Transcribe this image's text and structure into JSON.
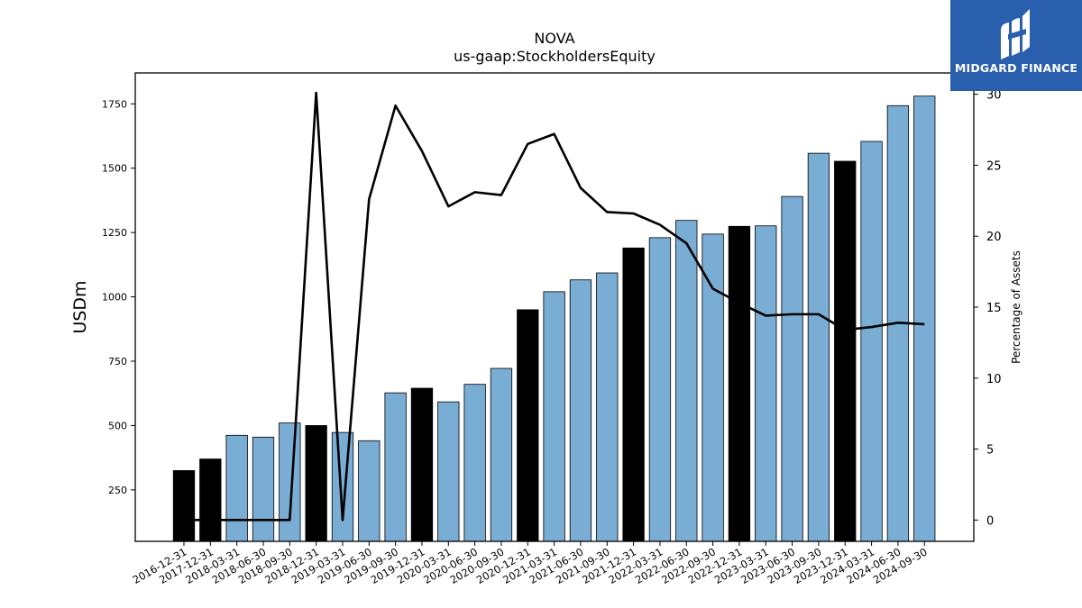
{
  "chart_data": {
    "type": "bar",
    "title": "NOVA",
    "subtitle": "us-gaap:StockholdersEquity",
    "ylabel": "USDm",
    "y2label": "Percentage of Assets",
    "ylim": [
      50,
      1870
    ],
    "y2lim": [
      -1.5,
      31.5
    ],
    "yticks": [
      250,
      500,
      750,
      1000,
      1250,
      1500,
      1750
    ],
    "y2ticks": [
      0,
      5,
      10,
      15,
      20,
      25,
      30
    ],
    "grid": false,
    "categories": [
      "2016-12-31",
      "2017-12-31",
      "2018-03-31",
      "2018-06-30",
      "2018-09-30",
      "2018-12-31",
      "2019-03-31",
      "2019-06-30",
      "2019-09-30",
      "2019-12-31",
      "2020-03-31",
      "2020-06-30",
      "2020-09-30",
      "2020-12-31",
      "2021-03-31",
      "2021-06-30",
      "2021-09-30",
      "2021-12-31",
      "2022-03-31",
      "2022-06-30",
      "2022-09-30",
      "2022-12-31",
      "2023-03-31",
      "2023-06-30",
      "2023-09-30",
      "2023-12-31",
      "2024-03-31",
      "2024-06-30",
      "2024-09-30"
    ],
    "series": [
      {
        "kind": "bar",
        "values": [
          325,
          370,
          462,
          455,
          510,
          500,
          473,
          441,
          627,
          645,
          592,
          660,
          722,
          950,
          1020,
          1066,
          1093,
          1190,
          1230,
          1297,
          1244,
          1274,
          1276,
          1390,
          1558,
          1527,
          1604,
          1743,
          1780
        ],
        "colors": [
          "#000000",
          "#000000",
          "#7aadd4",
          "#7aadd4",
          "#7aadd4",
          "#000000",
          "#7aadd4",
          "#7aadd4",
          "#7aadd4",
          "#000000",
          "#7aadd4",
          "#7aadd4",
          "#7aadd4",
          "#000000",
          "#7aadd4",
          "#7aadd4",
          "#7aadd4",
          "#000000",
          "#7aadd4",
          "#7aadd4",
          "#7aadd4",
          "#000000",
          "#7aadd4",
          "#7aadd4",
          "#7aadd4",
          "#000000",
          "#7aadd4",
          "#7aadd4",
          "#7aadd4"
        ]
      },
      {
        "kind": "line",
        "axis": "right",
        "values": [
          0,
          0,
          0,
          0,
          0,
          30.1,
          0,
          22.6,
          29.2,
          26.0,
          22.1,
          23.1,
          22.9,
          26.5,
          27.2,
          23.4,
          21.7,
          21.6,
          20.8,
          19.5,
          16.3,
          15.3,
          14.4,
          14.5,
          14.5,
          13.4,
          13.6,
          13.9,
          13.8
        ],
        "color": "#000000"
      }
    ]
  },
  "logo": {
    "text": "MIDGARD FINANCE",
    "background": "#2a5fae"
  }
}
